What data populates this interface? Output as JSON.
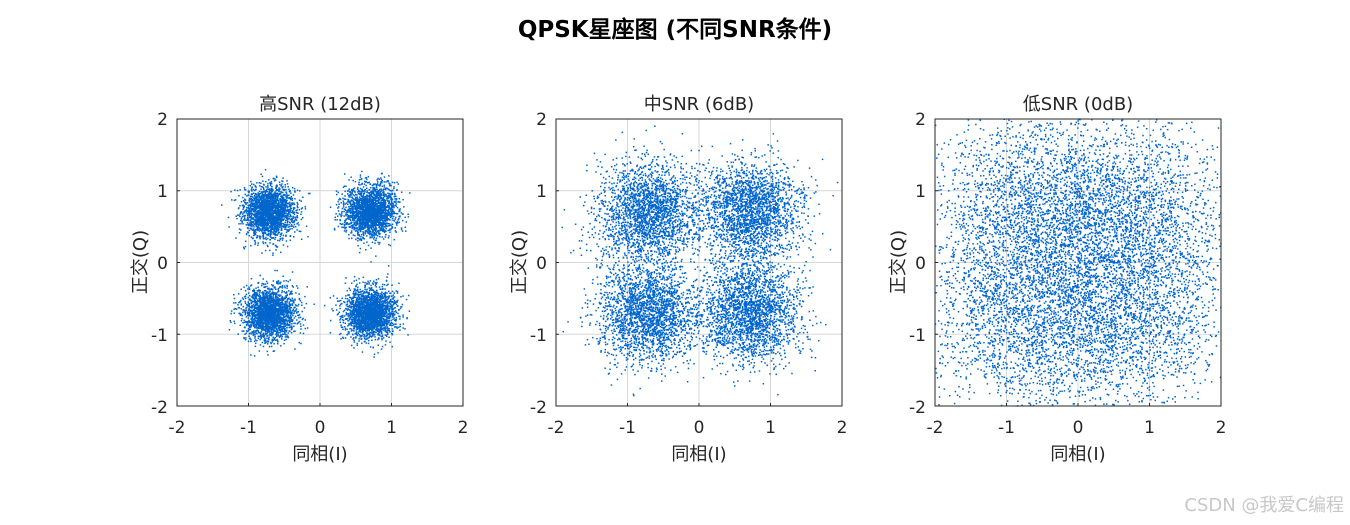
{
  "figure_title": "QPSK星座图 (不同SNR条件)",
  "watermark": "CSDN @我爱C编程",
  "colors": {
    "points": "#0066cc",
    "grid": "#d7d7d7",
    "axes": "#262626",
    "text": "#262626"
  },
  "chart_data": [
    {
      "type": "scatter",
      "title": "高SNR (12dB)",
      "xlabel": "同相(I)",
      "ylabel": "正交(Q)",
      "xlim": [
        -2,
        2
      ],
      "ylim": [
        -2,
        2
      ],
      "xticks": [
        "-2",
        "-1",
        "0",
        "1",
        "2"
      ],
      "yticks": [
        "2",
        "1",
        "0",
        "-1",
        "-2"
      ],
      "grid": true,
      "centers": [
        [
          -0.707,
          0.707
        ],
        [
          0.707,
          0.707
        ],
        [
          -0.707,
          -0.707
        ],
        [
          0.707,
          -0.707
        ]
      ],
      "noise_std": 0.18,
      "snr_db": 12
    },
    {
      "type": "scatter",
      "title": "中SNR (6dB)",
      "xlabel": "同相(I)",
      "ylabel": "正交(Q)",
      "xlim": [
        -2,
        2
      ],
      "ylim": [
        -2,
        2
      ],
      "xticks": [
        "-2",
        "-1",
        "0",
        "1",
        "2"
      ],
      "yticks": [
        "2",
        "1",
        "0",
        "-1",
        "-2"
      ],
      "grid": true,
      "centers": [
        [
          -0.707,
          0.707
        ],
        [
          0.707,
          0.707
        ],
        [
          -0.707,
          -0.707
        ],
        [
          0.707,
          -0.707
        ]
      ],
      "noise_std": 0.35,
      "snr_db": 6
    },
    {
      "type": "scatter",
      "title": "低SNR (0dB)",
      "xlabel": "同相(I)",
      "ylabel": "正交(Q)",
      "xlim": [
        -2,
        2
      ],
      "ylim": [
        -2,
        2
      ],
      "xticks": [
        "-2",
        "-1",
        "0",
        "1",
        "2"
      ],
      "yticks": [
        "2",
        "1",
        "0",
        "-1",
        "-2"
      ],
      "grid": true,
      "centers": [
        [
          -0.707,
          0.707
        ],
        [
          0.707,
          0.707
        ],
        [
          -0.707,
          -0.707
        ],
        [
          0.707,
          -0.707
        ]
      ],
      "noise_std": 0.707,
      "snr_db": 0
    }
  ]
}
